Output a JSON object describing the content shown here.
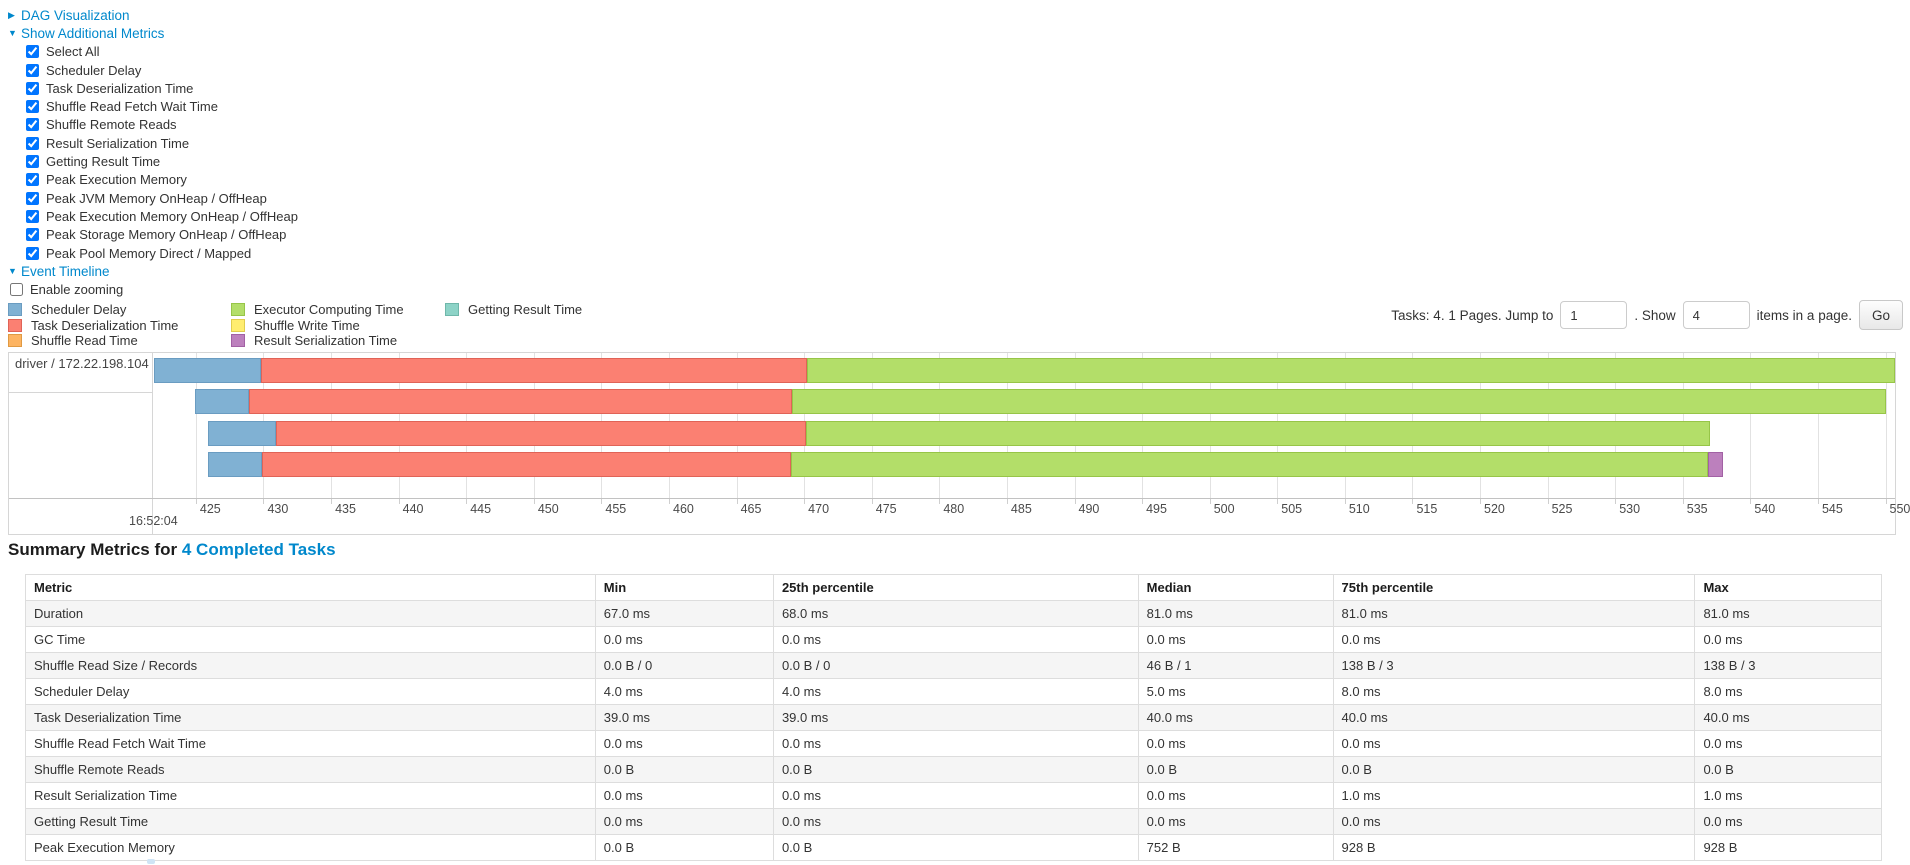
{
  "colors": {
    "link": "#0088cc"
  },
  "icons": {
    "caret_right": "▶",
    "caret_down": "▼"
  },
  "links": {
    "dag": "DAG Visualization",
    "metrics": "Show Additional Metrics",
    "timeline": "Event Timeline"
  },
  "metric_checkboxes": [
    "Select All",
    "Scheduler Delay",
    "Task Deserialization Time",
    "Shuffle Read Fetch Wait Time",
    "Shuffle Remote Reads",
    "Result Serialization Time",
    "Getting Result Time",
    "Peak Execution Memory",
    "Peak JVM Memory OnHeap / OffHeap",
    "Peak Execution Memory OnHeap / OffHeap",
    "Peak Storage Memory OnHeap / OffHeap",
    "Peak Pool Memory Direct / Mapped"
  ],
  "enable_zooming_label": "Enable zooming",
  "legend": {
    "columns": [
      [
        {
          "key": "scheduler_delay",
          "label": "Scheduler Delay",
          "color": "#80B1D3",
          "border": "#6A9CC1"
        },
        {
          "key": "task_deserialization",
          "label": "Task Deserialization Time",
          "color": "#FB8072",
          "border": "#E06357"
        },
        {
          "key": "shuffle_read",
          "label": "Shuffle Read Time",
          "color": "#FDB462",
          "border": "#E09A43"
        }
      ],
      [
        {
          "key": "executor_computing",
          "label": "Executor Computing Time",
          "color": "#B3DE69",
          "border": "#97C548"
        },
        {
          "key": "shuffle_write",
          "label": "Shuffle Write Time",
          "color": "#FFED6F",
          "border": "#E0CD4E"
        },
        {
          "key": "result_serialization",
          "label": "Result Serialization Time",
          "color": "#BC80BD",
          "border": "#A261A4"
        }
      ],
      [
        {
          "key": "getting_result",
          "label": "Getting Result Time",
          "color": "#8DD3C7",
          "border": "#6FB7AA"
        }
      ]
    ]
  },
  "pagination": {
    "tasks_text": "Tasks: 4. 1 Pages. Jump to",
    "jump_value": "1",
    "show_text": ". Show",
    "show_value": "4",
    "items_text": "items in a page.",
    "go_label": "Go"
  },
  "chart_data": {
    "type": "timeline",
    "group_label": "driver / 172.22.198.104",
    "axis": {
      "min": 421.9,
      "max": 550.7,
      "ticks": [
        425,
        430,
        435,
        440,
        445,
        450,
        455,
        460,
        465,
        470,
        475,
        480,
        485,
        490,
        495,
        500,
        505,
        510,
        515,
        520,
        525,
        530,
        535,
        540,
        545,
        550
      ],
      "time_label": "16:52:04"
    },
    "tasks": [
      {
        "segments": [
          {
            "key": "scheduler_delay",
            "from": 421.9,
            "to": 429.8
          },
          {
            "key": "task_deserialization",
            "from": 429.8,
            "to": 470.2
          },
          {
            "key": "executor_computing",
            "from": 470.2,
            "to": 550.7
          }
        ]
      },
      {
        "segments": [
          {
            "key": "scheduler_delay",
            "from": 424.9,
            "to": 428.9
          },
          {
            "key": "task_deserialization",
            "from": 428.9,
            "to": 469.1
          },
          {
            "key": "executor_computing",
            "from": 469.1,
            "to": 550.0
          }
        ]
      },
      {
        "segments": [
          {
            "key": "scheduler_delay",
            "from": 425.9,
            "to": 430.9
          },
          {
            "key": "task_deserialization",
            "from": 430.9,
            "to": 470.1
          },
          {
            "key": "executor_computing",
            "from": 470.1,
            "to": 537.0
          }
        ]
      },
      {
        "segments": [
          {
            "key": "scheduler_delay",
            "from": 425.9,
            "to": 429.9
          },
          {
            "key": "task_deserialization",
            "from": 429.9,
            "to": 469.0
          },
          {
            "key": "executor_computing",
            "from": 469.0,
            "to": 536.9
          },
          {
            "key": "result_serialization",
            "from": 536.9,
            "to": 538.0
          }
        ]
      }
    ]
  },
  "summary": {
    "title_prefix": "Summary Metrics for",
    "title_link": "4 Completed Tasks",
    "table": {
      "columns": [
        "Metric",
        "Min",
        "25th percentile",
        "Median",
        "75th percentile",
        "Max"
      ],
      "col_widths": [
        "30.7%",
        "9.6%",
        "19.65%",
        "10.5%",
        "19.5%",
        "10.05%"
      ],
      "rows": [
        [
          "Duration",
          "67.0 ms",
          "68.0 ms",
          "81.0 ms",
          "81.0 ms",
          "81.0 ms"
        ],
        [
          "GC Time",
          "0.0 ms",
          "0.0 ms",
          "0.0 ms",
          "0.0 ms",
          "0.0 ms"
        ],
        [
          "Shuffle Read Size / Records",
          "0.0 B / 0",
          "0.0 B / 0",
          "46 B / 1",
          "138 B / 3",
          "138 B / 3"
        ],
        [
          "Scheduler Delay",
          "4.0 ms",
          "4.0 ms",
          "5.0 ms",
          "8.0 ms",
          "8.0 ms"
        ],
        [
          "Task Deserialization Time",
          "39.0 ms",
          "39.0 ms",
          "40.0 ms",
          "40.0 ms",
          "40.0 ms"
        ],
        [
          "Shuffle Read Fetch Wait Time",
          "0.0 ms",
          "0.0 ms",
          "0.0 ms",
          "0.0 ms",
          "0.0 ms"
        ],
        [
          "Shuffle Remote Reads",
          "0.0 B",
          "0.0 B",
          "0.0 B",
          "0.0 B",
          "0.0 B"
        ],
        [
          "Result Serialization Time",
          "0.0 ms",
          "0.0 ms",
          "0.0 ms",
          "1.0 ms",
          "1.0 ms"
        ],
        [
          "Getting Result Time",
          "0.0 ms",
          "0.0 ms",
          "0.0 ms",
          "0.0 ms",
          "0.0 ms"
        ],
        [
          "Peak Execution Memory",
          "0.0 B",
          "0.0 B",
          "752 B",
          "928 B",
          "928 B"
        ]
      ]
    }
  }
}
